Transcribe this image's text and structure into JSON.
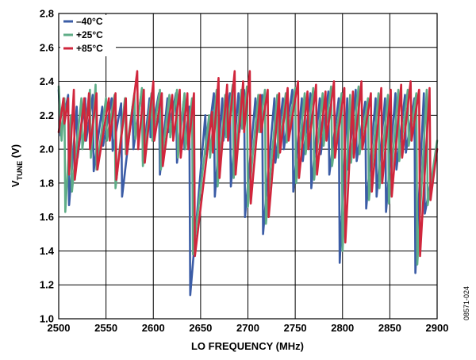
{
  "chart_data": {
    "type": "line",
    "xlabel": "LO FREQUENCY (MHz)",
    "ylabel_main": "V",
    "ylabel_sub": "TUNE",
    "ylabel_unit": " (V)",
    "xlim": [
      2500,
      2900
    ],
    "ylim": [
      1.0,
      2.8
    ],
    "x_ticks": [
      "2500",
      "2550",
      "2600",
      "2650",
      "2700",
      "2750",
      "2800",
      "2850",
      "2900"
    ],
    "y_ticks": [
      "1.0",
      "1.2",
      "1.4",
      "1.6",
      "1.8",
      "2.0",
      "2.2",
      "2.4",
      "2.6",
      "2.8"
    ],
    "grid": true,
    "legend_position": "top-left",
    "figure_id": "08571-024",
    "series": [
      {
        "name": "–40°C",
        "color": "#3b5ca6",
        "points": [
          [
            2500,
            2.35
          ],
          [
            2502,
            2.08
          ],
          [
            2510,
            2.32
          ],
          [
            2511,
            1.67
          ],
          [
            2519,
            2.25
          ],
          [
            2520,
            1.95
          ],
          [
            2528,
            2.3
          ],
          [
            2529,
            2.05
          ],
          [
            2536,
            2.32
          ],
          [
            2537,
            1.87
          ],
          [
            2546,
            2.25
          ],
          [
            2547,
            2.02
          ],
          [
            2556,
            2.3
          ],
          [
            2557,
            1.99
          ],
          [
            2566,
            2.27
          ],
          [
            2567,
            1.72
          ],
          [
            2578,
            2.25
          ],
          [
            2579,
            2.0
          ],
          [
            2588,
            2.35
          ],
          [
            2589,
            1.93
          ],
          [
            2596,
            2.3
          ],
          [
            2597,
            2.07
          ],
          [
            2606,
            2.33
          ],
          [
            2607,
            1.85
          ],
          [
            2615,
            2.3
          ],
          [
            2616,
            2.1
          ],
          [
            2624,
            2.33
          ],
          [
            2625,
            1.92
          ],
          [
            2632,
            2.28
          ],
          [
            2633,
            2.0
          ],
          [
            2638,
            2.25
          ],
          [
            2639,
            1.14
          ],
          [
            2655,
            2.2
          ],
          [
            2656,
            1.97
          ],
          [
            2664,
            2.33
          ],
          [
            2665,
            1.72
          ],
          [
            2673,
            2.3
          ],
          [
            2674,
            2.05
          ],
          [
            2681,
            2.33
          ],
          [
            2682,
            1.78
          ],
          [
            2690,
            2.33
          ],
          [
            2691,
            2.1
          ],
          [
            2696,
            2.35
          ],
          [
            2697,
            1.6
          ],
          [
            2708,
            2.3
          ],
          [
            2709,
            2.1
          ],
          [
            2715,
            2.32
          ],
          [
            2716,
            1.5
          ],
          [
            2728,
            2.3
          ],
          [
            2729,
            1.92
          ],
          [
            2737,
            2.3
          ],
          [
            2738,
            2.0
          ],
          [
            2747,
            2.35
          ],
          [
            2748,
            1.75
          ],
          [
            2757,
            2.3
          ],
          [
            2758,
            1.93
          ],
          [
            2766,
            2.33
          ],
          [
            2767,
            1.77
          ],
          [
            2776,
            2.3
          ],
          [
            2777,
            1.97
          ],
          [
            2785,
            2.34
          ],
          [
            2786,
            1.85
          ],
          [
            2796,
            2.3
          ],
          [
            2797,
            1.33
          ],
          [
            2805,
            2.3
          ],
          [
            2806,
            1.88
          ],
          [
            2814,
            2.35
          ],
          [
            2815,
            1.93
          ],
          [
            2824,
            2.28
          ],
          [
            2825,
            1.65
          ],
          [
            2835,
            2.3
          ],
          [
            2836,
            1.72
          ],
          [
            2845,
            2.3
          ],
          [
            2846,
            1.63
          ],
          [
            2856,
            2.33
          ],
          [
            2857,
            1.88
          ],
          [
            2866,
            2.32
          ],
          [
            2867,
            1.98
          ],
          [
            2876,
            2.3
          ],
          [
            2877,
            1.27
          ],
          [
            2886,
            2.33
          ],
          [
            2887,
            1.62
          ],
          [
            2900,
            2.0
          ]
        ]
      },
      {
        "name": "+25°C",
        "color": "#5fad87",
        "points": [
          [
            2500,
            2.37
          ],
          [
            2503,
            2.05
          ],
          [
            2506,
            2.3
          ],
          [
            2507,
            1.63
          ],
          [
            2513,
            2.2
          ],
          [
            2514,
            1.75
          ],
          [
            2524,
            2.3
          ],
          [
            2525,
            2.0
          ],
          [
            2533,
            2.35
          ],
          [
            2534,
            1.95
          ],
          [
            2539,
            2.38
          ],
          [
            2540,
            1.88
          ],
          [
            2550,
            2.3
          ],
          [
            2551,
            2.05
          ],
          [
            2559,
            2.32
          ],
          [
            2560,
            1.77
          ],
          [
            2570,
            2.3
          ],
          [
            2571,
            1.97
          ],
          [
            2580,
            2.33
          ],
          [
            2581,
            2.06
          ],
          [
            2588,
            2.36
          ],
          [
            2589,
            1.9
          ],
          [
            2598,
            2.33
          ],
          [
            2599,
            2.05
          ],
          [
            2607,
            2.35
          ],
          [
            2608,
            1.88
          ],
          [
            2617,
            2.32
          ],
          [
            2618,
            2.07
          ],
          [
            2625,
            2.35
          ],
          [
            2626,
            1.95
          ],
          [
            2633,
            2.33
          ],
          [
            2634,
            2.0
          ],
          [
            2641,
            2.3
          ],
          [
            2642,
            1.38
          ],
          [
            2659,
            2.2
          ],
          [
            2660,
            1.95
          ],
          [
            2667,
            2.35
          ],
          [
            2668,
            1.78
          ],
          [
            2676,
            2.32
          ],
          [
            2677,
            2.07
          ],
          [
            2684,
            2.38
          ],
          [
            2685,
            1.83
          ],
          [
            2693,
            2.35
          ],
          [
            2694,
            2.12
          ],
          [
            2699,
            2.37
          ],
          [
            2700,
            1.66
          ],
          [
            2711,
            2.32
          ],
          [
            2712,
            2.1
          ],
          [
            2718,
            2.35
          ],
          [
            2719,
            1.56
          ],
          [
            2731,
            2.32
          ],
          [
            2732,
            1.95
          ],
          [
            2740,
            2.33
          ],
          [
            2741,
            2.04
          ],
          [
            2750,
            2.36
          ],
          [
            2751,
            1.8
          ],
          [
            2760,
            2.33
          ],
          [
            2761,
            1.97
          ],
          [
            2769,
            2.36
          ],
          [
            2770,
            1.82
          ],
          [
            2779,
            2.33
          ],
          [
            2780,
            2.02
          ],
          [
            2788,
            2.37
          ],
          [
            2789,
            1.9
          ],
          [
            2799,
            2.33
          ],
          [
            2800,
            1.4
          ],
          [
            2808,
            2.32
          ],
          [
            2809,
            1.92
          ],
          [
            2817,
            2.37
          ],
          [
            2818,
            1.97
          ],
          [
            2827,
            2.3
          ],
          [
            2828,
            1.7
          ],
          [
            2838,
            2.33
          ],
          [
            2839,
            1.77
          ],
          [
            2848,
            2.32
          ],
          [
            2849,
            1.68
          ],
          [
            2859,
            2.35
          ],
          [
            2860,
            1.93
          ],
          [
            2869,
            2.35
          ],
          [
            2870,
            2.02
          ],
          [
            2878,
            2.33
          ],
          [
            2879,
            1.32
          ],
          [
            2889,
            2.35
          ],
          [
            2890,
            1.67
          ],
          [
            2900,
            2.05
          ]
        ]
      },
      {
        "name": "+85°C",
        "color": "#d0263c",
        "points": [
          [
            2500,
            2.1
          ],
          [
            2505,
            2.3
          ],
          [
            2506,
            2.15
          ],
          [
            2510,
            2.3
          ],
          [
            2511,
            1.85
          ],
          [
            2516,
            2.35
          ],
          [
            2517,
            1.82
          ],
          [
            2527,
            2.3
          ],
          [
            2528,
            2.05
          ],
          [
            2532,
            2.33
          ],
          [
            2533,
            2.0
          ],
          [
            2540,
            2.33
          ],
          [
            2541,
            1.88
          ],
          [
            2553,
            2.3
          ],
          [
            2554,
            2.05
          ],
          [
            2560,
            2.33
          ],
          [
            2561,
            1.82
          ],
          [
            2571,
            2.3
          ],
          [
            2572,
            1.97
          ],
          [
            2583,
            2.46
          ],
          [
            2584,
            2.0
          ],
          [
            2590,
            2.35
          ],
          [
            2591,
            1.92
          ],
          [
            2600,
            2.4
          ],
          [
            2601,
            2.05
          ],
          [
            2609,
            2.33
          ],
          [
            2610,
            1.9
          ],
          [
            2620,
            2.32
          ],
          [
            2621,
            2.05
          ],
          [
            2628,
            2.35
          ],
          [
            2629,
            1.95
          ],
          [
            2636,
            2.33
          ],
          [
            2637,
            2.0
          ],
          [
            2643,
            2.33
          ],
          [
            2644,
            1.37
          ],
          [
            2662,
            2.22
          ],
          [
            2663,
            1.98
          ],
          [
            2669,
            2.42
          ],
          [
            2670,
            1.83
          ],
          [
            2678,
            2.38
          ],
          [
            2679,
            2.05
          ],
          [
            2686,
            2.46
          ],
          [
            2687,
            1.85
          ],
          [
            2695,
            2.4
          ],
          [
            2696,
            2.1
          ],
          [
            2702,
            2.46
          ],
          [
            2703,
            1.68
          ],
          [
            2713,
            2.32
          ],
          [
            2714,
            2.1
          ],
          [
            2721,
            2.35
          ],
          [
            2722,
            1.6
          ],
          [
            2733,
            2.33
          ],
          [
            2734,
            1.98
          ],
          [
            2742,
            2.36
          ],
          [
            2743,
            2.05
          ],
          [
            2753,
            2.4
          ],
          [
            2754,
            1.83
          ],
          [
            2763,
            2.34
          ],
          [
            2764,
            2.0
          ],
          [
            2772,
            2.38
          ],
          [
            2773,
            1.85
          ],
          [
            2782,
            2.34
          ],
          [
            2783,
            2.05
          ],
          [
            2791,
            2.4
          ],
          [
            2792,
            1.95
          ],
          [
            2802,
            2.36
          ],
          [
            2803,
            1.45
          ],
          [
            2811,
            2.34
          ],
          [
            2812,
            1.95
          ],
          [
            2820,
            2.4
          ],
          [
            2821,
            2.0
          ],
          [
            2830,
            2.33
          ],
          [
            2831,
            1.75
          ],
          [
            2841,
            2.36
          ],
          [
            2842,
            1.8
          ],
          [
            2851,
            2.35
          ],
          [
            2852,
            1.72
          ],
          [
            2862,
            2.38
          ],
          [
            2863,
            1.95
          ],
          [
            2872,
            2.4
          ],
          [
            2873,
            2.05
          ],
          [
            2881,
            2.35
          ],
          [
            2882,
            1.37
          ],
          [
            2892,
            2.36
          ],
          [
            2893,
            1.7
          ],
          [
            2900,
            2.0
          ]
        ]
      }
    ]
  }
}
